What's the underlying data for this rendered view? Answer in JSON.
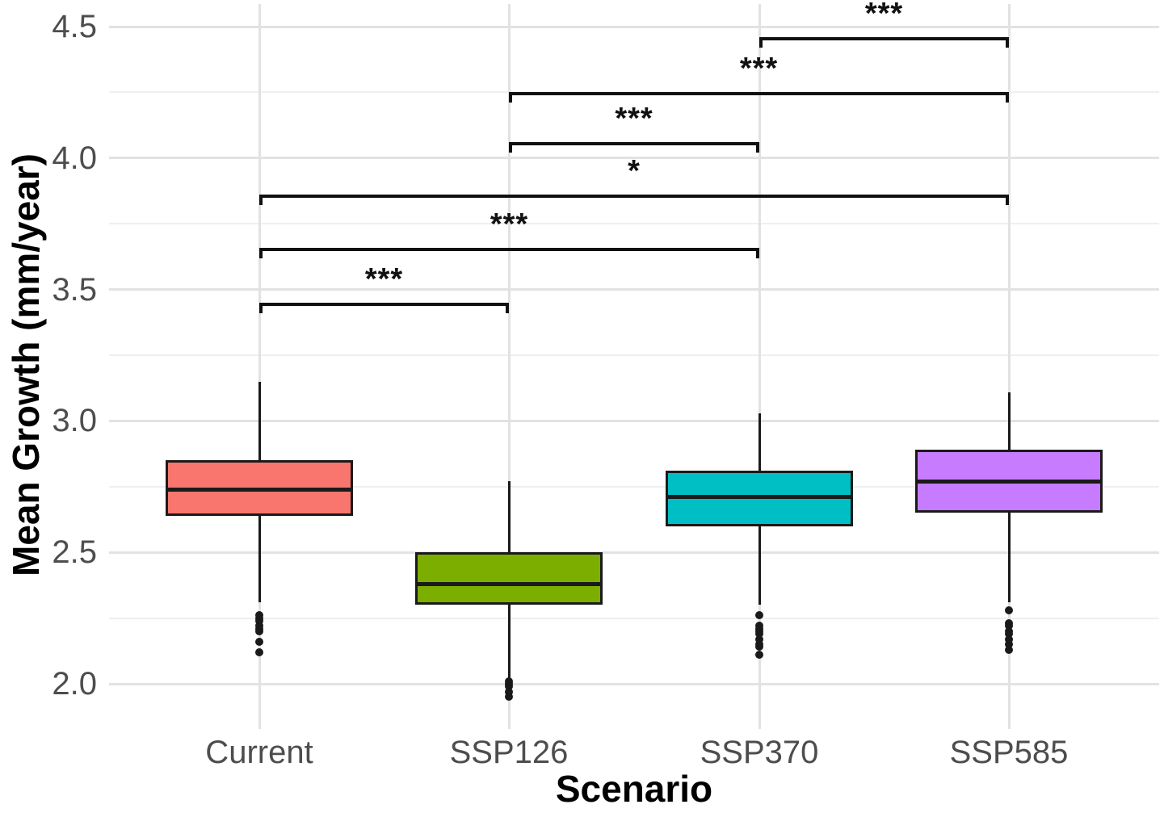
{
  "chart_data": {
    "type": "boxplot",
    "title": "",
    "xlabel": "Scenario",
    "ylabel": "Mean Growth (mm/year)",
    "categories": [
      "Current",
      "SSP126",
      "SSP370",
      "SSP585"
    ],
    "y_ticks": [
      2.0,
      2.5,
      3.0,
      3.5,
      4.0,
      4.5
    ],
    "y_minor_ticks": [
      2.25,
      2.75,
      3.25,
      3.75,
      4.25
    ],
    "ylim": [
      1.83,
      4.59
    ],
    "grid": "major+minor, white background",
    "legend": "none",
    "boxes": [
      {
        "category": "Current",
        "color": "#F8766D",
        "whisker_low": 2.31,
        "q1": 2.64,
        "median": 2.74,
        "q3": 2.85,
        "whisker_high": 3.15,
        "outliers": [
          2.26,
          2.25,
          2.24,
          2.22,
          2.21,
          2.2,
          2.16,
          2.12
        ]
      },
      {
        "category": "SSP126",
        "color": "#7CAE00",
        "whisker_low": 2.02,
        "q1": 2.3,
        "median": 2.38,
        "q3": 2.5,
        "whisker_high": 2.77,
        "outliers": [
          2.01,
          2.0,
          1.99,
          1.97,
          1.95
        ]
      },
      {
        "category": "SSP370",
        "color": "#00BFC4",
        "whisker_low": 2.3,
        "q1": 2.6,
        "median": 2.71,
        "q3": 2.81,
        "whisker_high": 3.03,
        "outliers": [
          2.26,
          2.22,
          2.21,
          2.2,
          2.19,
          2.17,
          2.15,
          2.14,
          2.11
        ]
      },
      {
        "category": "SSP585",
        "color": "#C77CFF",
        "whisker_low": 2.31,
        "q1": 2.65,
        "median": 2.77,
        "q3": 2.89,
        "whisker_high": 3.11,
        "outliers": [
          2.28,
          2.23,
          2.22,
          2.2,
          2.19,
          2.17,
          2.15,
          2.13
        ]
      }
    ],
    "significance_brackets": [
      {
        "from": "Current",
        "to": "SSP126",
        "y": 3.45,
        "label": "***"
      },
      {
        "from": "Current",
        "to": "SSP370",
        "y": 3.66,
        "label": "***"
      },
      {
        "from": "Current",
        "to": "SSP585",
        "y": 3.86,
        "label": "*"
      },
      {
        "from": "SSP126",
        "to": "SSP370",
        "y": 4.06,
        "label": "***"
      },
      {
        "from": "SSP126",
        "to": "SSP585",
        "y": 4.25,
        "label": "***"
      },
      {
        "from": "SSP370",
        "to": "SSP585",
        "y": 4.46,
        "label": "***"
      }
    ],
    "colors": {
      "box_outline": "#1A1A1A",
      "median_line": "#1A1A1A",
      "outlier": "#1A1A1A",
      "bracket": "#111111",
      "grid_major": "#E2E2E2",
      "grid_minor": "#EFEFEF",
      "tick_label": "#4D4D4D",
      "axis_title": "#000000",
      "background": "#FFFFFF"
    }
  }
}
